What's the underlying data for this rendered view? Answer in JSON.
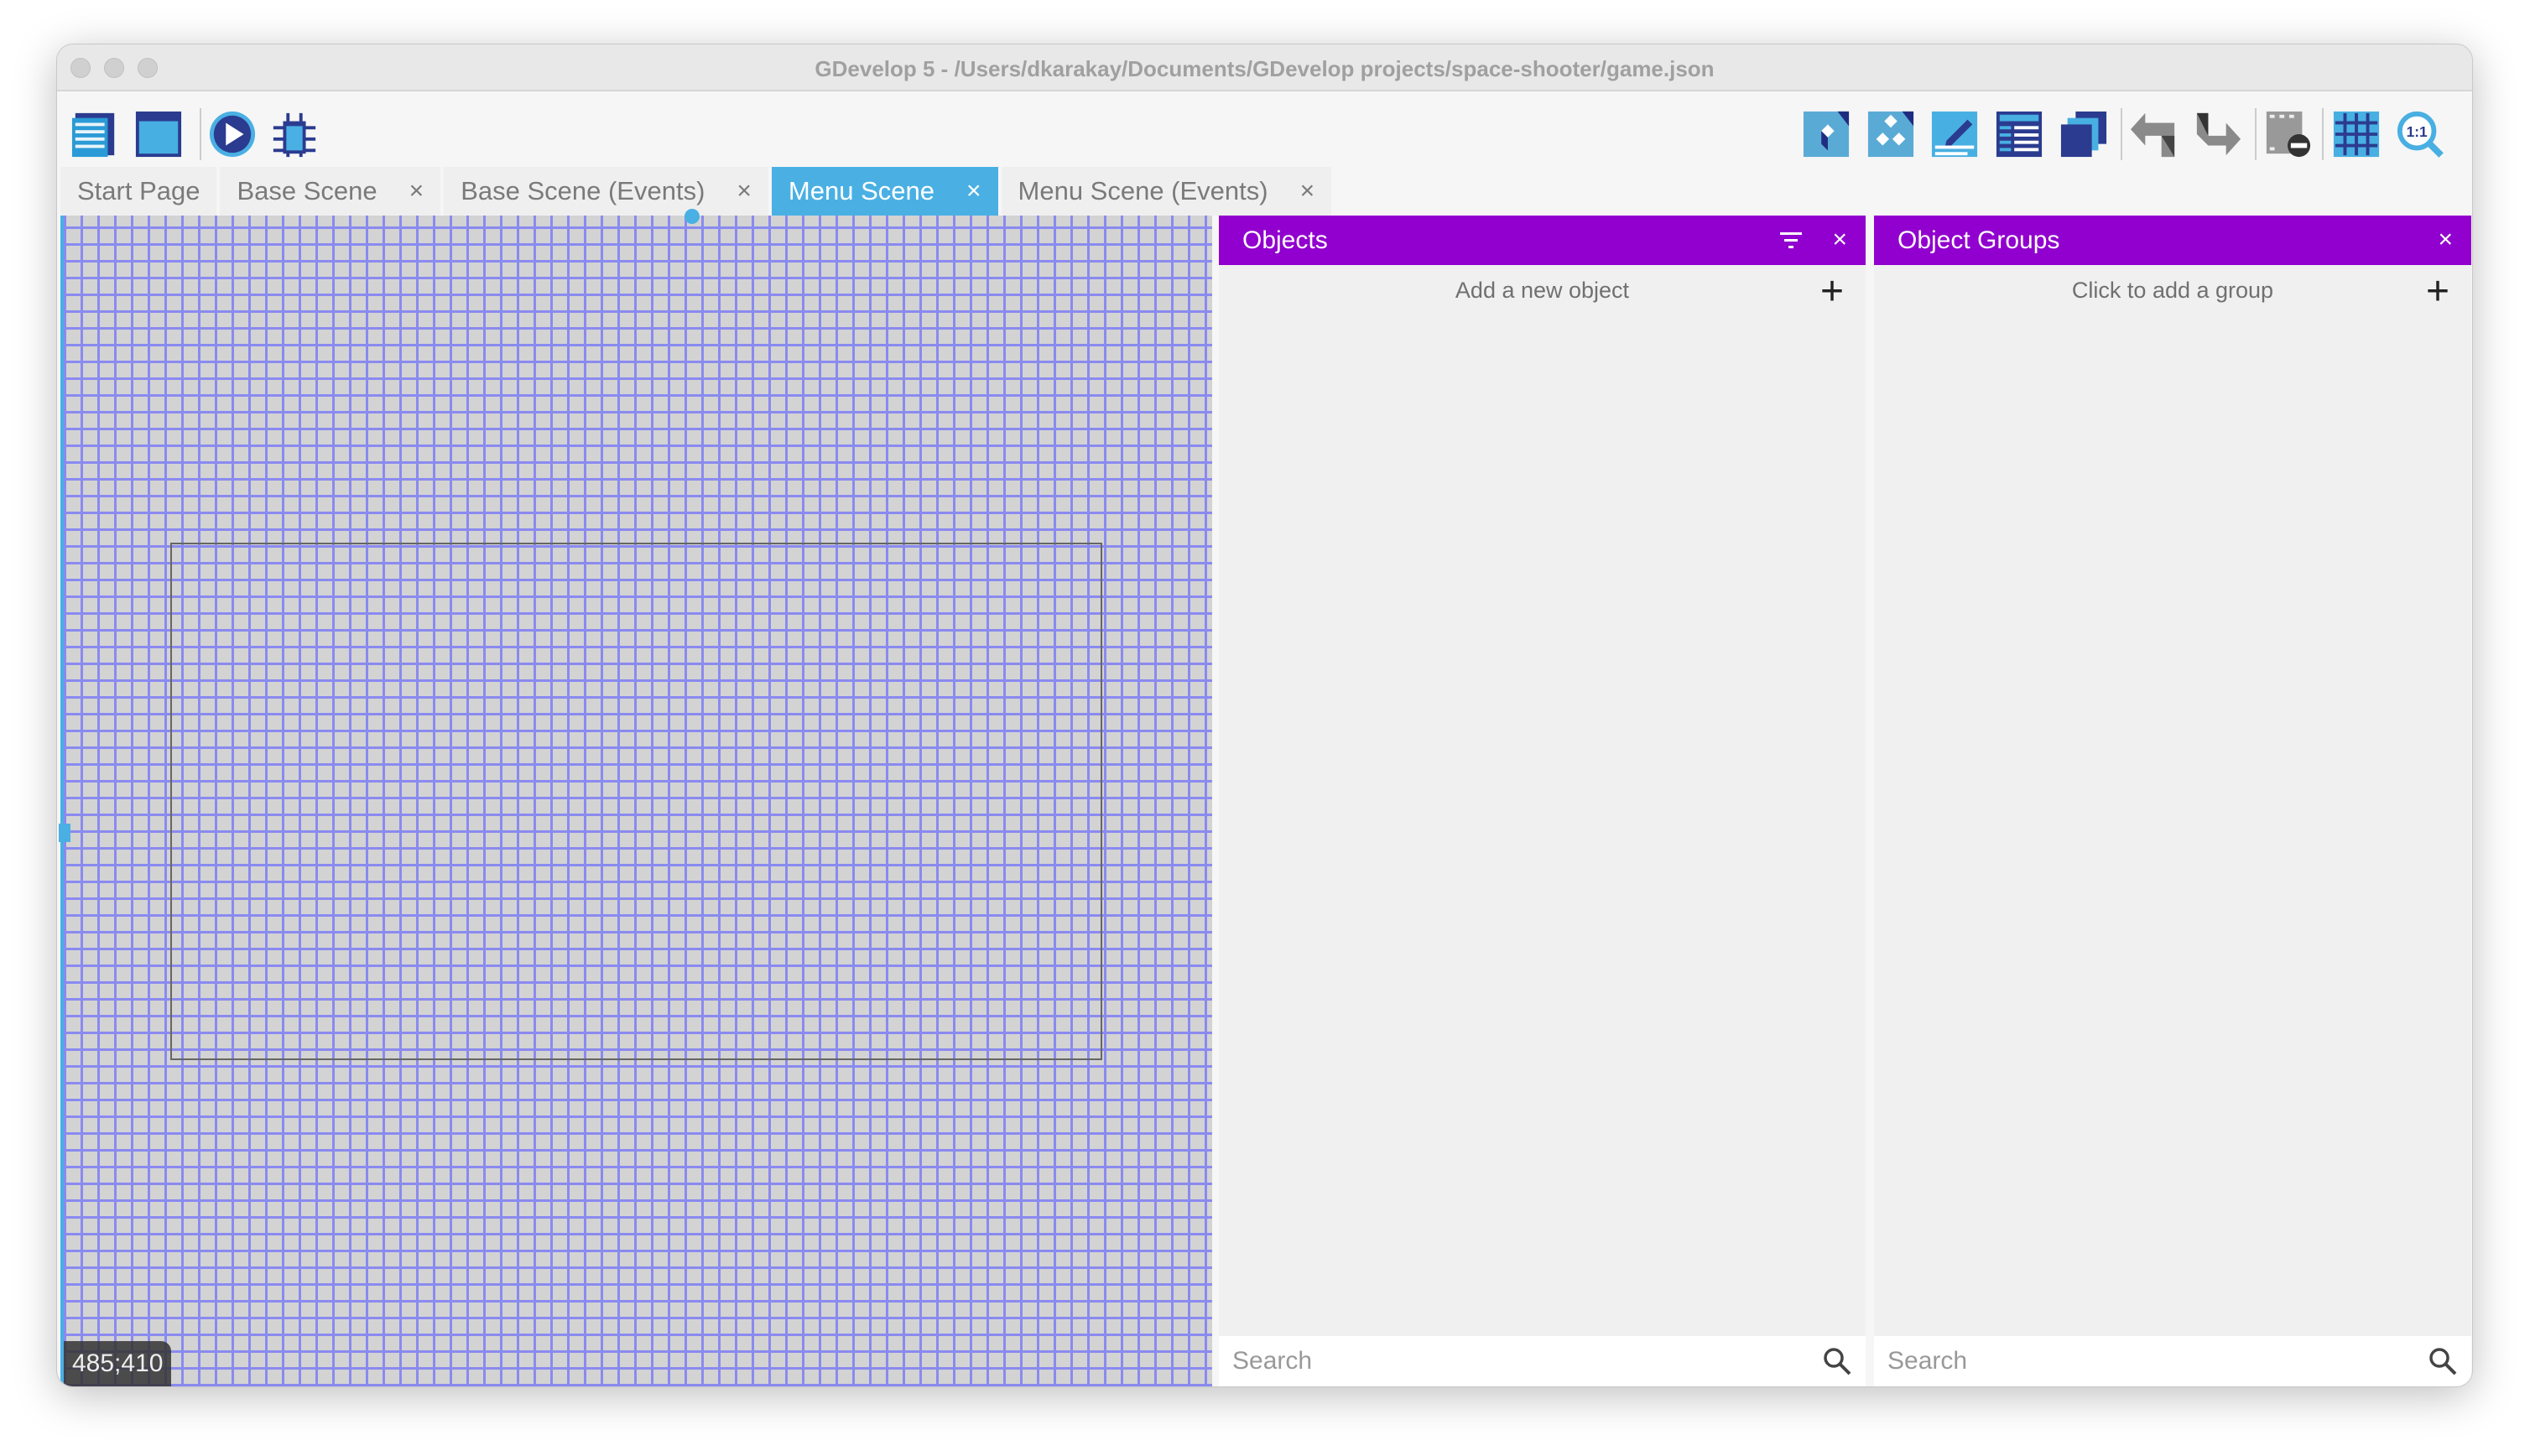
{
  "window": {
    "title": "GDevelop 5 - /Users/dkarakay/Documents/GDevelop projects/space-shooter/game.json"
  },
  "toolbar": {
    "left": [
      "project-manager-icon",
      "scene-icon",
      "preview-play-icon",
      "debugger-bug-icon"
    ],
    "right": [
      "object-icon",
      "object-groups-icon",
      "properties-edit-icon",
      "layers-list-icon",
      "instances-list-icon",
      "undo-icon",
      "redo-icon",
      "delete-selection-icon",
      "grid-icon",
      "zoom-reset-icon"
    ]
  },
  "tabs": [
    {
      "label": "Start Page",
      "closable": false
    },
    {
      "label": "Base Scene",
      "closable": true
    },
    {
      "label": "Base Scene (Events)",
      "closable": true
    },
    {
      "label": "Menu Scene",
      "closable": true,
      "active": true
    },
    {
      "label": "Menu Scene (Events)",
      "closable": true
    }
  ],
  "tab_close": "×",
  "canvas": {
    "coordinates": "485;410"
  },
  "objects_panel": {
    "title": "Objects",
    "add_label": "Add a new object",
    "search_placeholder": "Search"
  },
  "groups_panel": {
    "title": "Object Groups",
    "add_label": "Click to add a group",
    "search_placeholder": "Search"
  },
  "colors": {
    "accent": "#4ab0e4",
    "panel_header": "#9100ce",
    "grid_line": "#8a8af0",
    "canvas_bg": "#d3d3d3"
  }
}
